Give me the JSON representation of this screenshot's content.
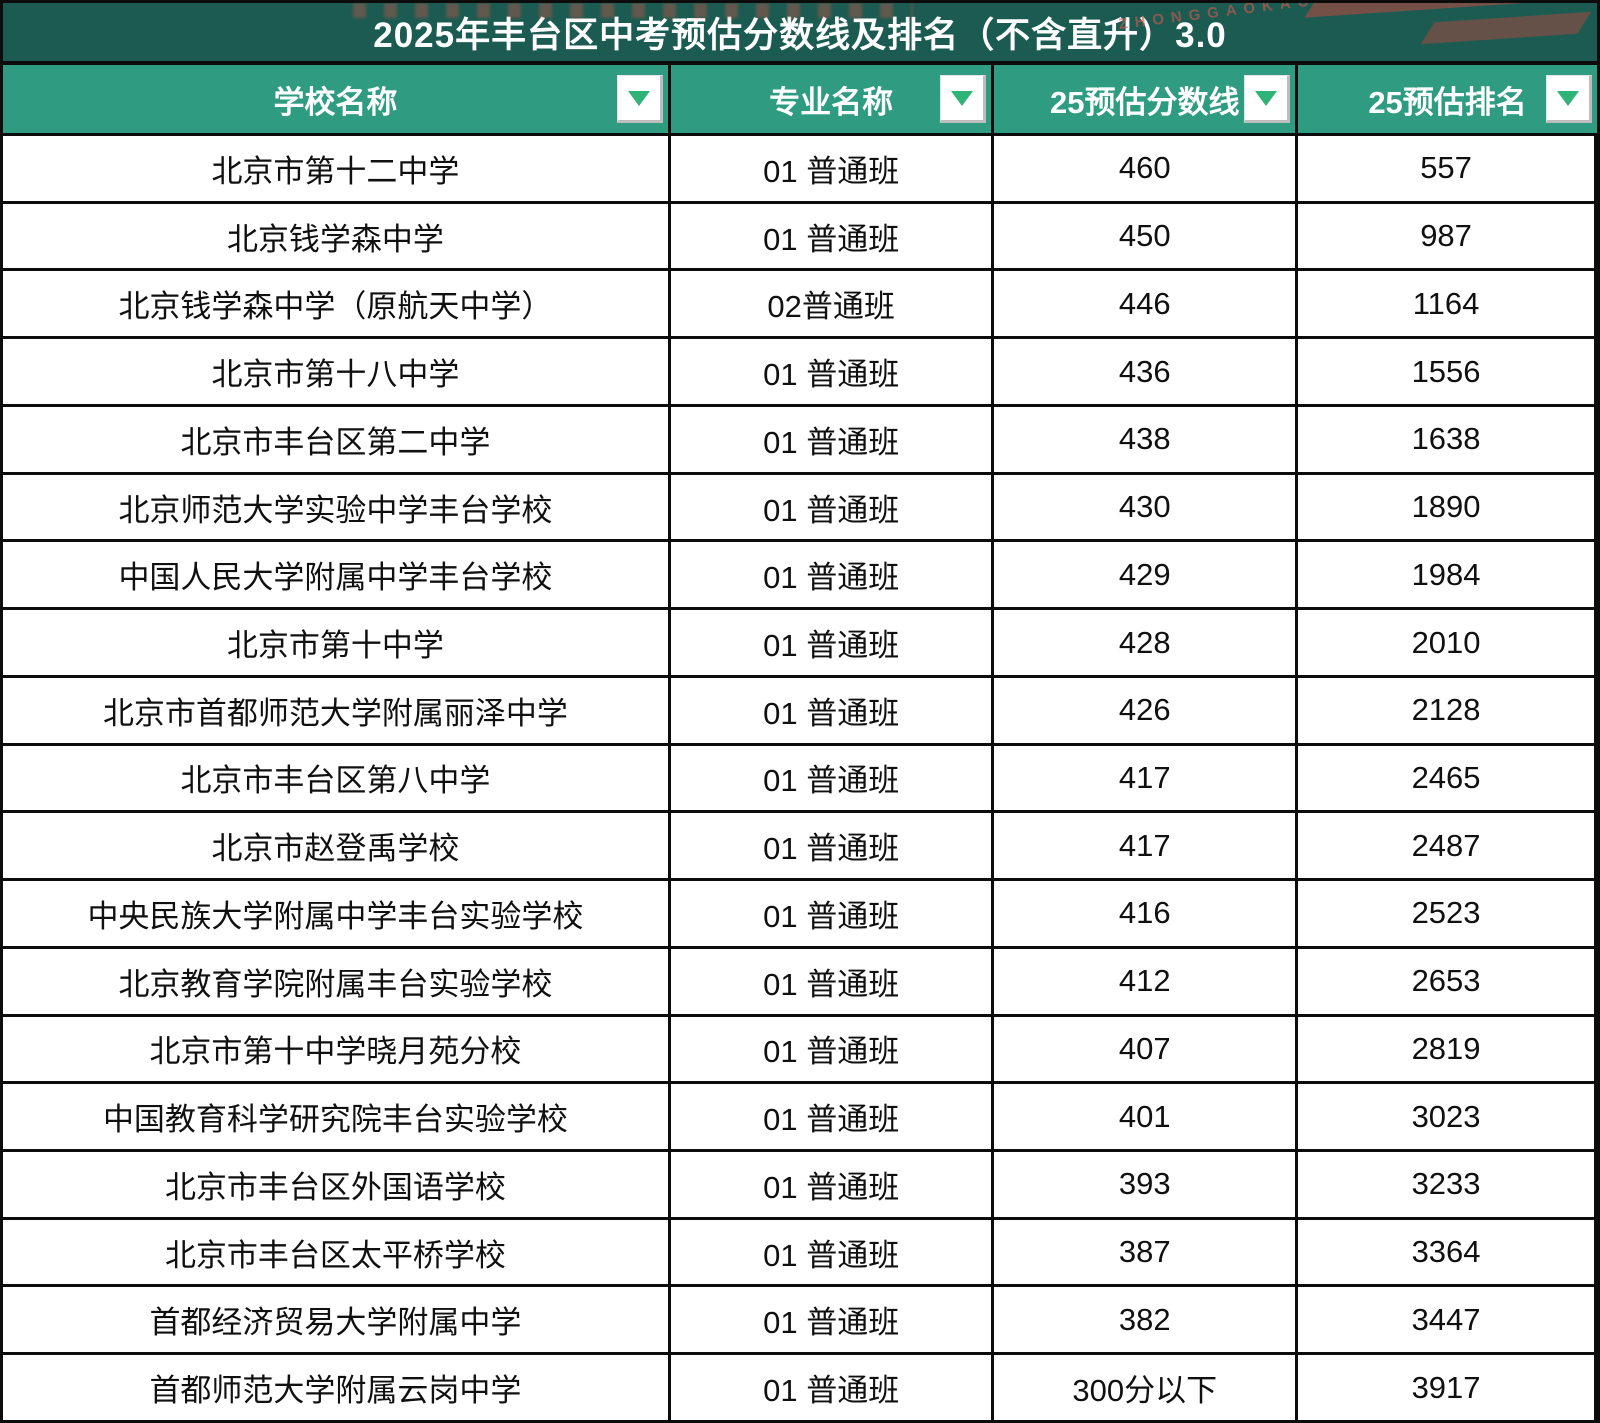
{
  "title": "2025年丰台区中考预估分数线及排名（不含直升）3.0",
  "watermark": {
    "text": "ZHONGGAOKAO"
  },
  "theme": {
    "title_bar_bg": "#1b5b51",
    "header_bg": "#2f9c82",
    "filter_triangle_green": "#2fb377",
    "grid_border": "#0c0c0c",
    "row_bg": "#ffffff",
    "row_text": "#101010",
    "header_text": "#ffffff",
    "watermark_red": "#d15a4e"
  },
  "table": {
    "columns": [
      {
        "label": "学校名称"
      },
      {
        "label": "专业名称"
      },
      {
        "label": "25预估分数线"
      },
      {
        "label": "25预估排名"
      }
    ],
    "rows": [
      {
        "school": "北京市第十二中学",
        "major": "01 普通班",
        "score": "460",
        "rank": "557"
      },
      {
        "school": "北京钱学森中学",
        "major": "01 普通班",
        "score": "450",
        "rank": "987"
      },
      {
        "school": "北京钱学森中学（原航天中学）",
        "major": "02普通班",
        "score": "446",
        "rank": "1164"
      },
      {
        "school": "北京市第十八中学",
        "major": "01 普通班",
        "score": "436",
        "rank": "1556"
      },
      {
        "school": "北京市丰台区第二中学",
        "major": "01 普通班",
        "score": "438",
        "rank": "1638"
      },
      {
        "school": "北京师范大学实验中学丰台学校",
        "major": "01 普通班",
        "score": "430",
        "rank": "1890"
      },
      {
        "school": "中国人民大学附属中学丰台学校",
        "major": "01 普通班",
        "score": "429",
        "rank": "1984"
      },
      {
        "school": "北京市第十中学",
        "major": "01 普通班",
        "score": "428",
        "rank": "2010"
      },
      {
        "school": "北京市首都师范大学附属丽泽中学",
        "major": "01 普通班",
        "score": "426",
        "rank": "2128"
      },
      {
        "school": "北京市丰台区第八中学",
        "major": "01 普通班",
        "score": "417",
        "rank": "2465"
      },
      {
        "school": "北京市赵登禹学校",
        "major": "01 普通班",
        "score": "417",
        "rank": "2487"
      },
      {
        "school": "中央民族大学附属中学丰台实验学校",
        "major": "01 普通班",
        "score": "416",
        "rank": "2523"
      },
      {
        "school": "北京教育学院附属丰台实验学校",
        "major": "01 普通班",
        "score": "412",
        "rank": "2653"
      },
      {
        "school": "北京市第十中学晓月苑分校",
        "major": "01 普通班",
        "score": "407",
        "rank": "2819"
      },
      {
        "school": "中国教育科学研究院丰台实验学校",
        "major": "01 普通班",
        "score": "401",
        "rank": "3023"
      },
      {
        "school": "北京市丰台区外国语学校",
        "major": "01 普通班",
        "score": "393",
        "rank": "3233"
      },
      {
        "school": "北京市丰台区太平桥学校",
        "major": "01 普通班",
        "score": "387",
        "rank": "3364"
      },
      {
        "school": "首都经济贸易大学附属中学",
        "major": "01 普通班",
        "score": "382",
        "rank": "3447"
      },
      {
        "school": "首都师范大学附属云岗中学",
        "major": "01 普通班",
        "score": "300分以下",
        "rank": "3917"
      }
    ]
  },
  "chart_data": {
    "type": "table",
    "title": "2025年丰台区中考预估分数线及排名（不含直升）3.0",
    "columns": [
      "学校名称",
      "专业名称",
      "25预估分数线",
      "25预估排名"
    ],
    "rows": [
      [
        "北京市第十二中学",
        "01 普通班",
        "460",
        "557"
      ],
      [
        "北京钱学森中学",
        "01 普通班",
        "450",
        "987"
      ],
      [
        "北京钱学森中学（原航天中学）",
        "02普通班",
        "446",
        "1164"
      ],
      [
        "北京市第十八中学",
        "01 普通班",
        "436",
        "1556"
      ],
      [
        "北京市丰台区第二中学",
        "01 普通班",
        "438",
        "1638"
      ],
      [
        "北京师范大学实验中学丰台学校",
        "01 普通班",
        "430",
        "1890"
      ],
      [
        "中国人民大学附属中学丰台学校",
        "01 普通班",
        "429",
        "1984"
      ],
      [
        "北京市第十中学",
        "01 普通班",
        "428",
        "2010"
      ],
      [
        "北京市首都师范大学附属丽泽中学",
        "01 普通班",
        "426",
        "2128"
      ],
      [
        "北京市丰台区第八中学",
        "01 普通班",
        "417",
        "2465"
      ],
      [
        "北京市赵登禹学校",
        "01 普通班",
        "417",
        "2487"
      ],
      [
        "中央民族大学附属中学丰台实验学校",
        "01 普通班",
        "416",
        "2523"
      ],
      [
        "北京教育学院附属丰台实验学校",
        "01 普通班",
        "412",
        "2653"
      ],
      [
        "北京市第十中学晓月苑分校",
        "01 普通班",
        "407",
        "2819"
      ],
      [
        "中国教育科学研究院丰台实验学校",
        "01 普通班",
        "401",
        "3023"
      ],
      [
        "北京市丰台区外国语学校",
        "01 普通班",
        "393",
        "3233"
      ],
      [
        "北京市丰台区太平桥学校",
        "01 普通班",
        "387",
        "3364"
      ],
      [
        "首都经济贸易大学附属中学",
        "01 普通班",
        "382",
        "3447"
      ],
      [
        "首都师范大学附属云岗中学",
        "01 普通班",
        "300分以下",
        "3917"
      ]
    ]
  }
}
